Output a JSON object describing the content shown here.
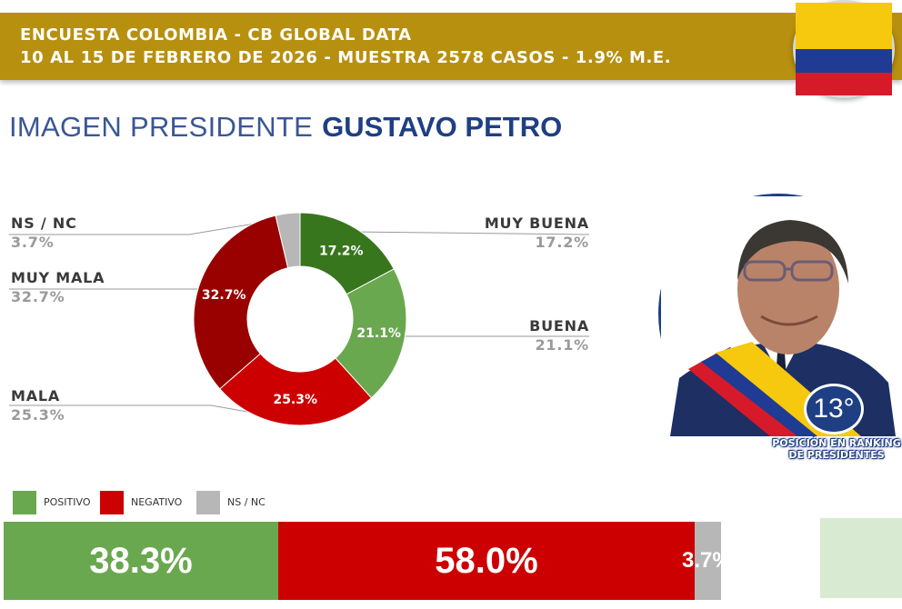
{
  "header": {
    "line1": "ENCUESTA COLOMBIA - CB GLOBAL DATA",
    "line2": "10 AL 15 DE FEBRERO DE 2026 - MUESTRA 2578 CASOS - 1.9% M.E."
  },
  "title": {
    "prefix": "IMAGEN PRESIDENTE",
    "name": "GUSTAVO PETRO"
  },
  "chart_data": [
    {
      "type": "pie",
      "variant": "donut",
      "slices": [
        {
          "label": "MUY BUENA",
          "value": 17.2,
          "display": "17.2%",
          "color": "#38761d"
        },
        {
          "label": "BUENA",
          "value": 21.1,
          "display": "21.1%",
          "color": "#6aa84f"
        },
        {
          "label": "MALA",
          "value": 25.3,
          "display": "25.3%",
          "color": "#cc0000"
        },
        {
          "label": "MUY MALA",
          "value": 32.7,
          "display": "32.7%",
          "color": "#990000"
        },
        {
          "label": "NS / NC",
          "value": 3.7,
          "display": "3.7%",
          "color": "#b7b7b7"
        }
      ]
    },
    {
      "type": "bar",
      "orientation": "horizontal-stacked",
      "legend": [
        "POSITIVO",
        "NEGATIVO",
        "NS / NC"
      ],
      "legend_position": "top-left",
      "segments": [
        {
          "name": "POSITIVO",
          "value": 38.3,
          "display": "38.3%",
          "color": "#6aa84f"
        },
        {
          "name": "NEGATIVO",
          "value": 58.0,
          "display": "58.0%",
          "color": "#cc0000"
        },
        {
          "name": "NS / NC",
          "value": 3.7,
          "display": "3.7%",
          "color": "#b7b7b7"
        }
      ]
    }
  ],
  "ranking": {
    "position": "13°",
    "caption_line1": "POSICIÓN EN RANKING",
    "caption_line2": "DE PRESIDENTES"
  },
  "colors": {
    "header": "#b7900f",
    "title_blue": "#1f3f84"
  }
}
